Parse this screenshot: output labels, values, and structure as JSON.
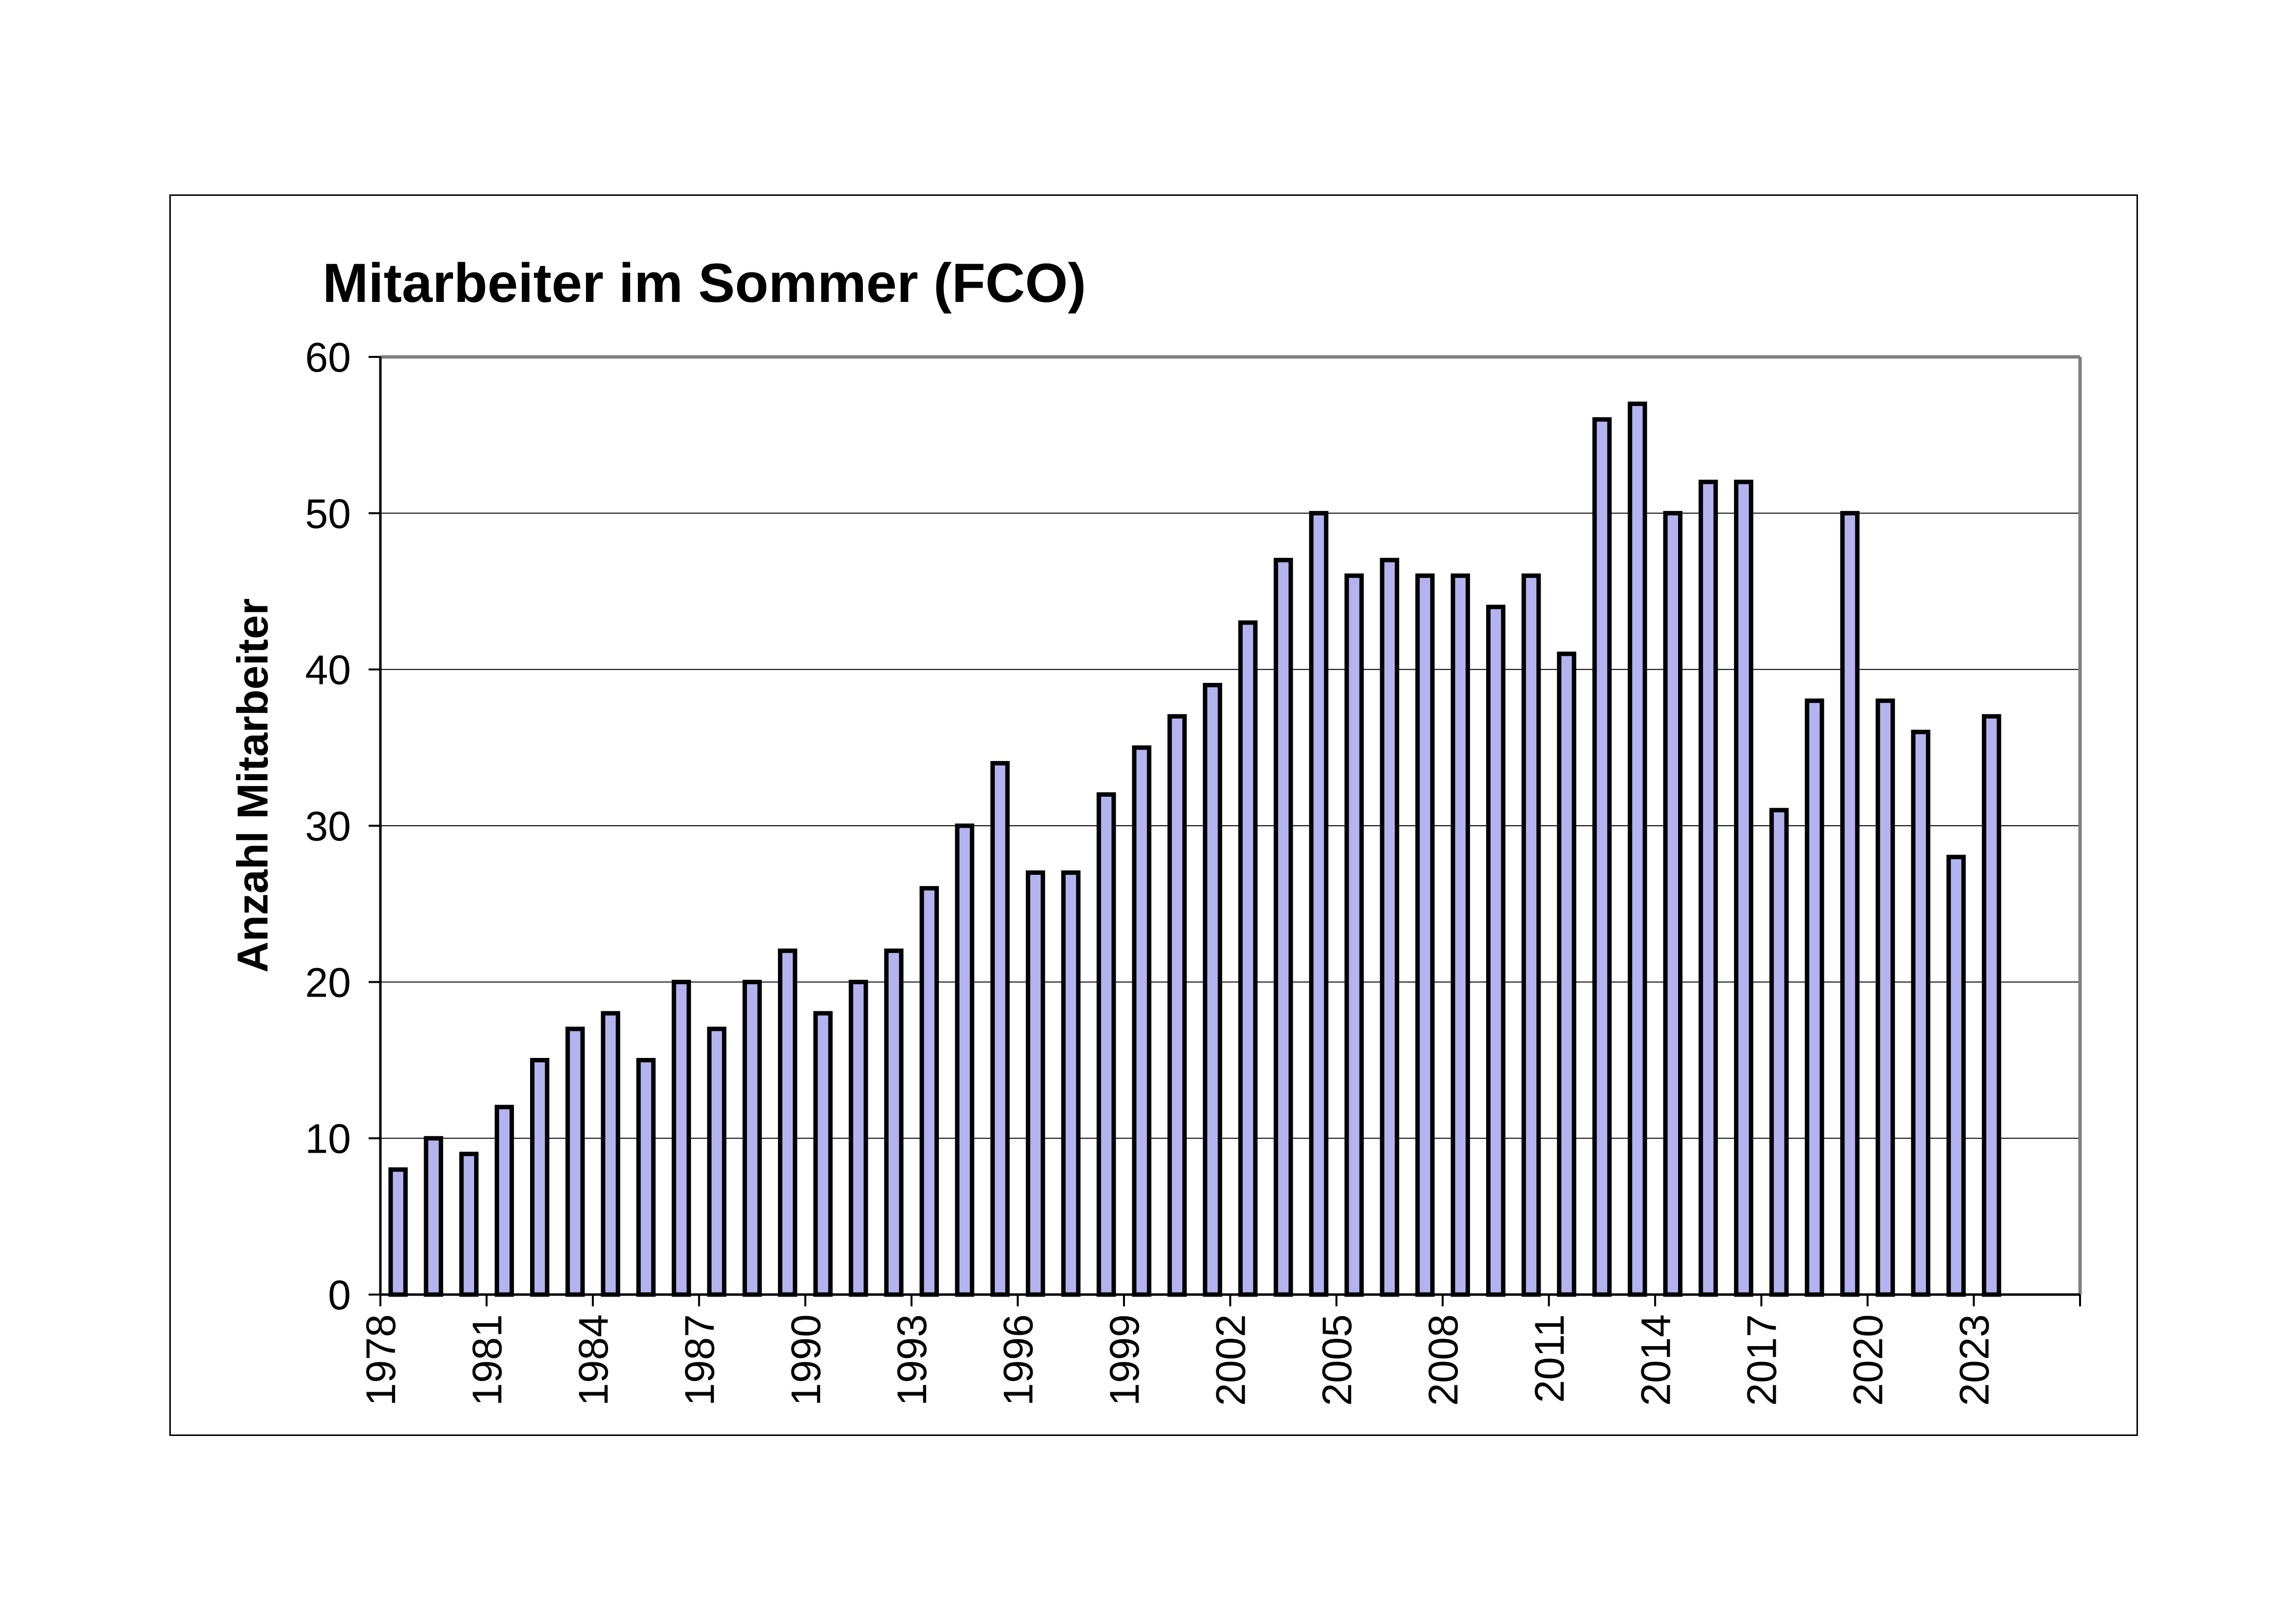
{
  "chart_data": {
    "type": "bar",
    "title": "Mitarbeiter im Sommer (FCO)",
    "xlabel": "",
    "ylabel": "Anzahl Mitarbeiter",
    "ylim": [
      0,
      60
    ],
    "yticks": [
      0,
      10,
      20,
      30,
      40,
      50,
      60
    ],
    "grid": true,
    "legend": "none",
    "bar_color": "#B3B3EF",
    "bar_edge_color": "#000000",
    "x_tick_labels_shown": [
      "1978",
      "1981",
      "1984",
      "1987",
      "1990",
      "1993",
      "1996",
      "1999",
      "2002",
      "2005",
      "2008",
      "2011",
      "2014",
      "2017",
      "2020",
      "2023"
    ],
    "categories": [
      "1978",
      "1979",
      "1980",
      "1981",
      "1982",
      "1983",
      "1984",
      "1985",
      "1986",
      "1987",
      "1988",
      "1989",
      "1990",
      "1991",
      "1992",
      "1993",
      "1994",
      "1995",
      "1996",
      "1997",
      "1998",
      "1999",
      "2000",
      "2001",
      "2002",
      "2003",
      "2004",
      "2005",
      "2006",
      "2007",
      "2008",
      "2009",
      "2010",
      "2011",
      "2012",
      "2013",
      "2014",
      "2015",
      "2016",
      "2017",
      "2018",
      "2019",
      "2020",
      "2021",
      "2022",
      "2023",
      "2024",
      "2025"
    ],
    "values": [
      8,
      10,
      9,
      12,
      15,
      17,
      18,
      15,
      20,
      17,
      20,
      22,
      18,
      20,
      22,
      26,
      30,
      34,
      27,
      27,
      32,
      35,
      37,
      39,
      43,
      47,
      50,
      46,
      47,
      46,
      46,
      44,
      46,
      41,
      56,
      57,
      50,
      52,
      52,
      31,
      38,
      50,
      38,
      36,
      28,
      37,
      null,
      null
    ]
  }
}
